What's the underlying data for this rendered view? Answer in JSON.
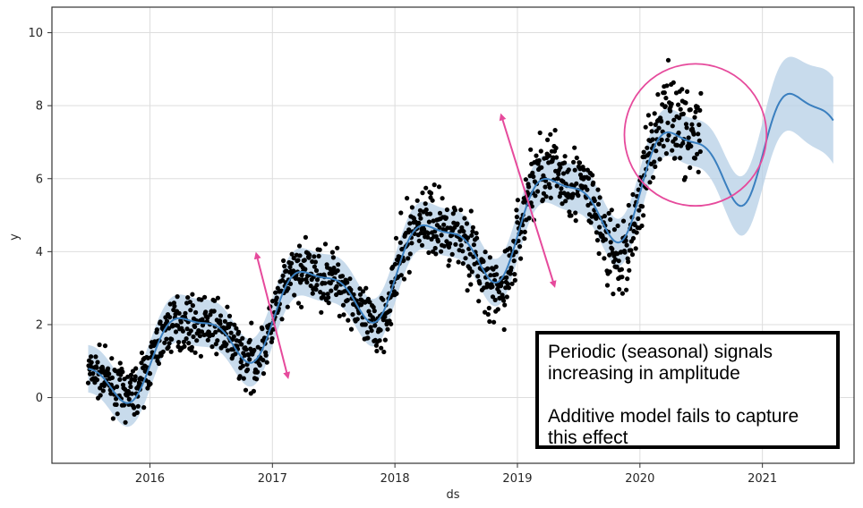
{
  "chart_data": {
    "type": "scatter",
    "title": "",
    "xlabel": "ds",
    "ylabel": "y",
    "xlim": [
      "2015-03-15",
      "2021-10-01"
    ],
    "ylim": [
      -1.8,
      10.7
    ],
    "x_ticks": [
      "2016",
      "2017",
      "2018",
      "2019",
      "2020",
      "2021"
    ],
    "y_ticks": [
      "0",
      "2",
      "4",
      "6",
      "8",
      "10"
    ],
    "grid": true,
    "colors": {
      "observed": "#000000",
      "forecast_line": "#3a7fbf",
      "forecast_band": "#b5cfe6",
      "annotation": "#e64a9c"
    },
    "series": [
      {
        "kind": "observations",
        "date_range": [
          "2015-07-01",
          "2020-07-01"
        ],
        "description": "seasonal cycles with amplitude increasing over time, trend rising from about 0.5 to about 7"
      },
      {
        "kind": "forecast",
        "date_range": [
          "2015-07-01",
          "2021-07-31"
        ],
        "description": "additive model fit with uncertainty band"
      }
    ],
    "annotations": {
      "arrows": [
        {
          "from": [
            "2016-11-15",
            3.9
          ],
          "to": [
            "2017-02-15",
            0.6
          ]
        },
        {
          "from": [
            "2018-11-15",
            7.7
          ],
          "to": [
            "2019-04-20",
            3.1
          ]
        }
      ],
      "circle": {
        "center": [
          "2020-06-15",
          7.2
        ],
        "radius_years": 0.58
      }
    },
    "note": {
      "lines": [
        "Periodic (seasonal) signals",
        "increasing in amplitude",
        "Additive model fails to capture",
        "this effect"
      ]
    }
  }
}
